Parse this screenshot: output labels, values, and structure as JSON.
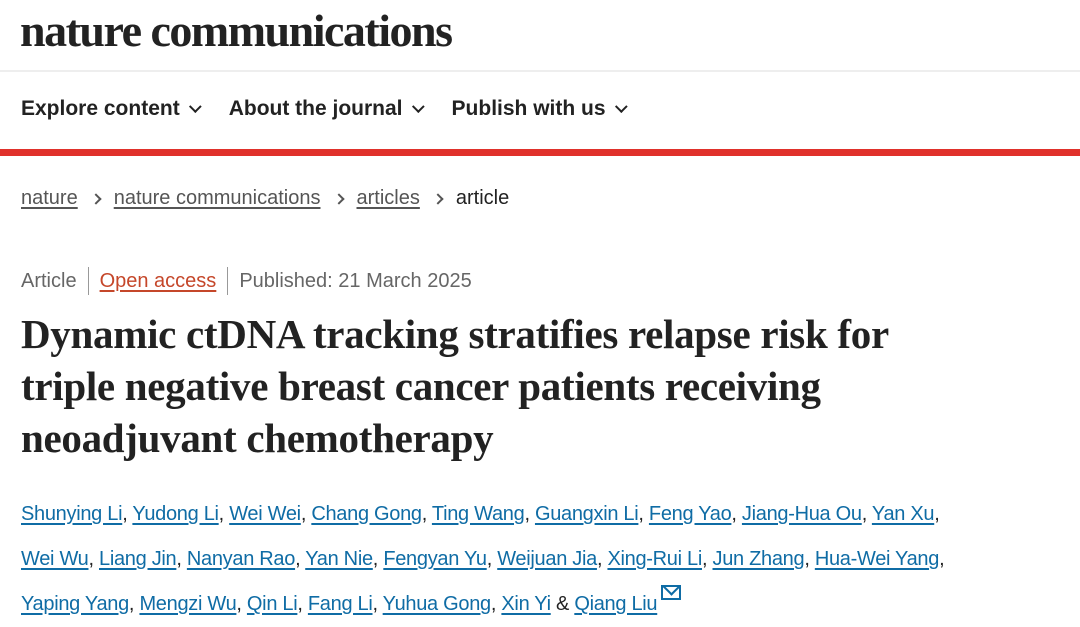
{
  "header": {
    "logo": "nature communications"
  },
  "nav": [
    {
      "label": "Explore content"
    },
    {
      "label": "About the journal"
    },
    {
      "label": "Publish with us"
    }
  ],
  "breadcrumb": [
    {
      "label": "nature"
    },
    {
      "label": "nature communications"
    },
    {
      "label": "articles"
    },
    {
      "label": "article"
    }
  ],
  "meta": {
    "type": "Article",
    "access": "Open access",
    "published": "Published: 21 March 2025"
  },
  "title_lines": [
    "Dynamic ctDNA tracking stratifies relapse risk for",
    "triple negative breast cancer patients receiving",
    "neoadjuvant chemotherapy"
  ],
  "author_lines": [
    [
      "Shunying Li",
      "Yudong Li",
      "Wei Wei",
      "Chang Gong",
      "Ting Wang",
      "Guangxin Li",
      "Feng Yao",
      "Jiang-Hua Ou",
      "Yan Xu"
    ],
    [
      "Wei Wu",
      "Liang Jin",
      "Nanyan Rao",
      "Yan Nie",
      "Fengyan Yu",
      "Weijuan Jia",
      "Xing-Rui Li",
      "Jun Zhang",
      "Hua-Wei Yang"
    ],
    [
      "Yaping Yang",
      "Mengzi Wu",
      "Qin Li",
      "Fang Li",
      "Yuhua Gong",
      "Xin Yi",
      "Qiang Liu"
    ]
  ],
  "ampersand": "&",
  "colors": {
    "accent_red": "#e0312b",
    "link_blue": "#0f6ca5",
    "open_access": "#c5472a"
  },
  "icons": {
    "chevron": "chevron-down-icon",
    "mail": "envelope-icon"
  }
}
